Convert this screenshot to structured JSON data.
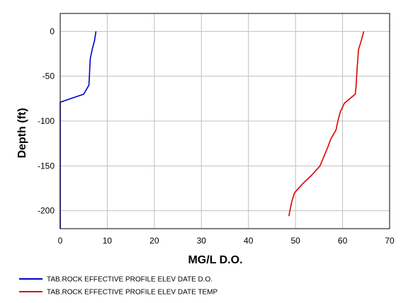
{
  "chart_data": {
    "type": "line",
    "xlabel": "MG/L D.O.",
    "ylabel": "Depth (ft)",
    "xlim": [
      0,
      70
    ],
    "ylim": [
      -220,
      20
    ],
    "x_ticks": [
      0,
      10,
      20,
      30,
      40,
      50,
      60,
      70
    ],
    "y_ticks": [
      0,
      -50,
      -100,
      -150,
      -200
    ],
    "grid": true,
    "legend_position": "bottom-left",
    "series": [
      {
        "name": "TAB.ROCK EFFECTIVE PROFILE ELEV DATE D.O.",
        "color": "#0000cc",
        "points": [
          [
            7.6,
            0
          ],
          [
            7.3,
            -10
          ],
          [
            6.8,
            -20
          ],
          [
            6.4,
            -30
          ],
          [
            6.3,
            -40
          ],
          [
            6.2,
            -50
          ],
          [
            6.1,
            -60
          ],
          [
            5.0,
            -70
          ],
          [
            0.0,
            -79
          ],
          [
            0.0,
            -100
          ],
          [
            0.0,
            -150
          ],
          [
            0.0,
            -200
          ],
          [
            0.0,
            -220
          ]
        ]
      },
      {
        "name": "TAB.ROCK EFFECTIVE PROFILE ELEV DATE TEMP",
        "color": "#dd0000",
        "points": [
          [
            64.5,
            0
          ],
          [
            64.0,
            -10
          ],
          [
            63.4,
            -20
          ],
          [
            63.1,
            -40
          ],
          [
            62.9,
            -60
          ],
          [
            62.7,
            -70
          ],
          [
            60.4,
            -80
          ],
          [
            59.5,
            -90
          ],
          [
            59.0,
            -100
          ],
          [
            58.6,
            -110
          ],
          [
            57.5,
            -120
          ],
          [
            56.8,
            -130
          ],
          [
            56.0,
            -140
          ],
          [
            55.2,
            -150
          ],
          [
            53.5,
            -160
          ],
          [
            51.5,
            -170
          ],
          [
            49.8,
            -180
          ],
          [
            49.2,
            -190
          ],
          [
            48.8,
            -200
          ],
          [
            48.6,
            -206
          ]
        ]
      }
    ]
  }
}
